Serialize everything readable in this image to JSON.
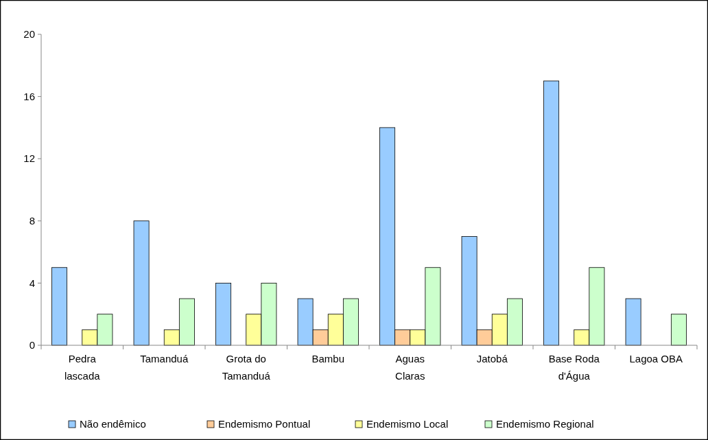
{
  "chart_data": {
    "type": "bar",
    "categories": [
      "Pedra lascada",
      "Tamanduá",
      "Grota do Tamanduá",
      "Bambu",
      "Aguas Claras",
      "Jatobá",
      "Base Roda d'Água",
      "Lagoa OBA"
    ],
    "series": [
      {
        "name": "Não endêmico",
        "color": "#99ccff",
        "values": [
          5,
          8,
          4,
          3,
          14,
          7,
          17,
          3
        ]
      },
      {
        "name": "Endemismo Pontual",
        "color": "#ffcc99",
        "values": [
          0,
          0,
          0,
          1,
          1,
          1,
          0,
          0
        ]
      },
      {
        "name": "Endemismo Local",
        "color": "#ffff99",
        "values": [
          1,
          1,
          2,
          2,
          1,
          2,
          1,
          0
        ]
      },
      {
        "name": "Endemismo Regional",
        "color": "#ccffcc",
        "values": [
          2,
          3,
          4,
          3,
          5,
          3,
          5,
          2
        ]
      }
    ],
    "ylim": [
      0,
      20
    ],
    "yticks": [
      0,
      4,
      8,
      12,
      16,
      20
    ],
    "grid": false,
    "legend": "bottom"
  }
}
